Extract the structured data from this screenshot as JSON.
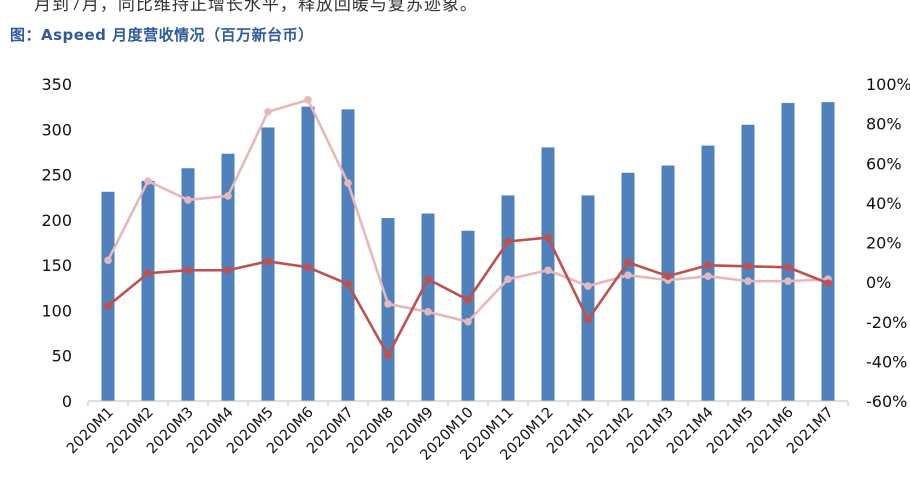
{
  "text_above": "月到7月，同比维持正增长水平，释放回暖与复苏迹象。",
  "figure_title": "图：Aspeed 月度营收情况（百万新台币）",
  "chart_data": {
    "type": "bar",
    "categories": [
      "2020M1",
      "2020M2",
      "2020M3",
      "2020M4",
      "2020M5",
      "2020M6",
      "2020M7",
      "2020M8",
      "2020M9",
      "2020M10",
      "2020M11",
      "2020M12",
      "2021M1",
      "2021M2",
      "2021M3",
      "2021M4",
      "2021M5",
      "2021M6",
      "2021M7"
    ],
    "series": [
      {
        "kind": "bar",
        "axis": "left",
        "color": "#4f81bd",
        "values": [
          231,
          243,
          257,
          273,
          302,
          325,
          322,
          202,
          207,
          188,
          227,
          280,
          227,
          252,
          260,
          282,
          305,
          329,
          330
        ]
      },
      {
        "kind": "line",
        "axis": "right",
        "color": "#c0504d",
        "values": [
          -12,
          4.5,
          6,
          6,
          10.5,
          7.5,
          -1,
          -37,
          1.5,
          -9,
          20.5,
          22.5,
          -19,
          10,
          3,
          8.5,
          8,
          7.5,
          -0.5
        ]
      },
      {
        "kind": "line",
        "axis": "right",
        "color": "#e6b9b8",
        "values": [
          11,
          51,
          41.5,
          43.5,
          86,
          92,
          50,
          -11,
          -15,
          -20,
          1.5,
          6,
          -2,
          3.5,
          1,
          3,
          0.5,
          0.5,
          1.5
        ]
      }
    ],
    "yleft": {
      "min": 0,
      "max": 350,
      "ticks": [
        "0",
        "50",
        "100",
        "150",
        "200",
        "250",
        "300",
        "350"
      ]
    },
    "yright": {
      "min": -60,
      "max": 100,
      "ticks": [
        "-60%",
        "-40%",
        "-20%",
        "0%",
        "20%",
        "40%",
        "60%",
        "80%",
        "100%"
      ]
    },
    "grid": false
  }
}
